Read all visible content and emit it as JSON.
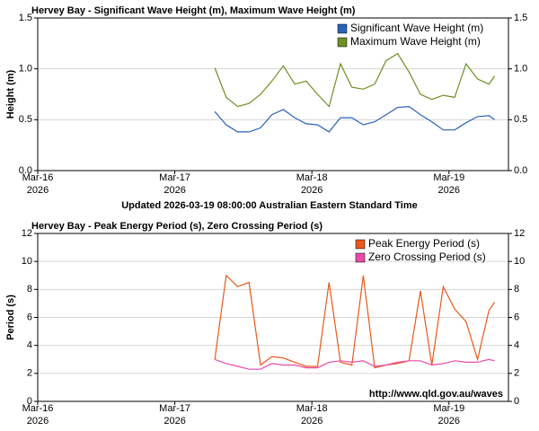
{
  "chart_data": [
    {
      "type": "line",
      "title": "Hervey Bay - Significant Wave Height (m), Maximum Wave Height (m)",
      "y_label": "Height (m)",
      "x": [
        "2026-03-17 07:00",
        "2026-03-17 09:00",
        "2026-03-17 11:00",
        "2026-03-17 13:00",
        "2026-03-17 15:00",
        "2026-03-17 17:00",
        "2026-03-17 19:00",
        "2026-03-17 21:00",
        "2026-03-17 23:00",
        "2026-03-18 01:00",
        "2026-03-18 03:00",
        "2026-03-18 05:00",
        "2026-03-18 07:00",
        "2026-03-18 09:00",
        "2026-03-18 11:00",
        "2026-03-18 13:00",
        "2026-03-18 15:00",
        "2026-03-18 17:00",
        "2026-03-18 19:00",
        "2026-03-18 21:00",
        "2026-03-18 23:00",
        "2026-03-19 01:00",
        "2026-03-19 03:00",
        "2026-03-19 05:00",
        "2026-03-19 07:00",
        "2026-03-19 08:00"
      ],
      "series": [
        {
          "name": "Significant Wave Height (m)",
          "color": "#2a62b8",
          "values": [
            0.58,
            0.45,
            0.38,
            0.38,
            0.42,
            0.55,
            0.6,
            0.52,
            0.46,
            0.45,
            0.38,
            0.52,
            0.52,
            0.45,
            0.48,
            0.55,
            0.62,
            0.63,
            0.55,
            0.48,
            0.4,
            0.4,
            0.47,
            0.53,
            0.54,
            0.5
          ]
        },
        {
          "name": "Maximum Wave Height (m)",
          "color": "#6e8f22",
          "values": [
            1.01,
            0.72,
            0.63,
            0.66,
            0.75,
            0.88,
            1.03,
            0.85,
            0.88,
            0.75,
            0.63,
            1.05,
            0.82,
            0.8,
            0.85,
            1.08,
            1.15,
            0.97,
            0.75,
            0.7,
            0.74,
            0.72,
            1.05,
            0.9,
            0.85,
            0.93
          ]
        }
      ],
      "xlim": [
        "2026-03-16 00:00",
        "2026-03-19 10:25"
      ],
      "xticks": [
        {
          "value": "2026-03-16 00:00",
          "label": [
            "Mar-16",
            "2026"
          ]
        },
        {
          "value": "2026-03-17 00:00",
          "label": [
            "Mar-17",
            "2026"
          ]
        },
        {
          "value": "2026-03-18 00:00",
          "label": [
            "Mar-18",
            "2026"
          ]
        },
        {
          "value": "2026-03-19 00:00",
          "label": [
            "Mar-19",
            "2026"
          ]
        }
      ],
      "ylim": [
        0,
        1.5
      ],
      "yticks": [
        {
          "value": 0,
          "label": "0.0"
        },
        {
          "value": 0.5,
          "label": "0.5"
        },
        {
          "value": 1,
          "label": "1.0"
        },
        {
          "value": 1.5,
          "label": "1.5"
        }
      ],
      "grid": true,
      "legend": "top-right"
    },
    {
      "type": "line",
      "title": "Hervey Bay - Peak Energy Period (s), Zero Crossing Period (s)",
      "y_label": "Period (s)",
      "x": [
        "2026-03-17 07:00",
        "2026-03-17 09:00",
        "2026-03-17 11:00",
        "2026-03-17 13:00",
        "2026-03-17 15:00",
        "2026-03-17 17:00",
        "2026-03-17 19:00",
        "2026-03-17 21:00",
        "2026-03-17 23:00",
        "2026-03-18 01:00",
        "2026-03-18 03:00",
        "2026-03-18 05:00",
        "2026-03-18 07:00",
        "2026-03-18 09:00",
        "2026-03-18 11:00",
        "2026-03-18 13:00",
        "2026-03-18 15:00",
        "2026-03-18 17:00",
        "2026-03-18 19:00",
        "2026-03-18 21:00",
        "2026-03-18 23:00",
        "2026-03-19 01:00",
        "2026-03-19 03:00",
        "2026-03-19 05:00",
        "2026-03-19 07:00",
        "2026-03-19 08:00"
      ],
      "series": [
        {
          "name": "Peak Energy Period (s)",
          "color": "#e8581a",
          "values": [
            3.0,
            9.0,
            8.2,
            8.5,
            2.6,
            3.2,
            3.1,
            2.8,
            2.5,
            2.5,
            8.5,
            2.8,
            2.6,
            9.0,
            2.4,
            2.6,
            2.7,
            2.9,
            7.9,
            2.6,
            8.2,
            6.6,
            5.7,
            3.0,
            6.5,
            7.1
          ]
        },
        {
          "name": "Zero Crossing Period (s)",
          "color": "#e84ca8",
          "values": [
            3.0,
            2.7,
            2.5,
            2.3,
            2.3,
            2.7,
            2.6,
            2.6,
            2.4,
            2.4,
            2.8,
            2.9,
            2.8,
            2.9,
            2.5,
            2.6,
            2.8,
            2.9,
            2.9,
            2.6,
            2.7,
            2.9,
            2.8,
            2.8,
            3.0,
            2.9
          ]
        }
      ],
      "xlim": [
        "2026-03-16 00:00",
        "2026-03-19 10:25"
      ],
      "xticks": [
        {
          "value": "2026-03-16 00:00",
          "label": [
            "Mar-16",
            "2026"
          ]
        },
        {
          "value": "2026-03-17 00:00",
          "label": [
            "Mar-17",
            "2026"
          ]
        },
        {
          "value": "2026-03-18 00:00",
          "label": [
            "Mar-18",
            "2026"
          ]
        },
        {
          "value": "2026-03-19 00:00",
          "label": [
            "Mar-19",
            "2026"
          ]
        }
      ],
      "ylim": [
        0,
        12
      ],
      "yticks": [
        0,
        2,
        4,
        6,
        8,
        10,
        12
      ],
      "grid": true,
      "legend": "top-right",
      "annotation": "http://www.qld.gov.au/waves"
    }
  ],
  "updated": "Updated 2026-03-19 08:00:00 Australian Eastern Standard Time"
}
